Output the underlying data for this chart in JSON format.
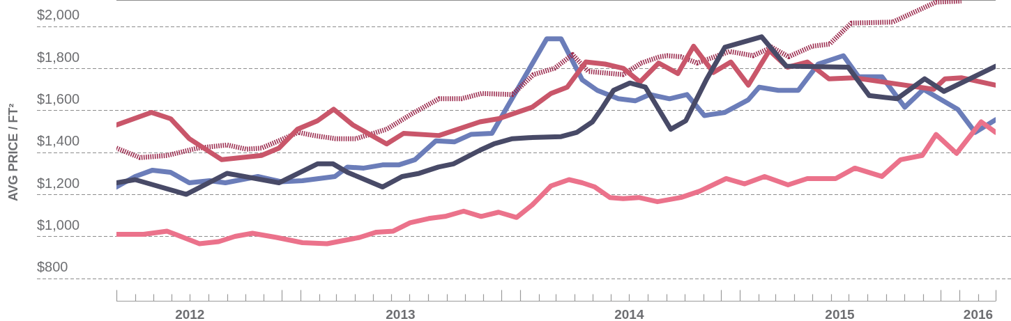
{
  "chart_data": {
    "type": "line",
    "ylabel": "AVG PRICE / FT²",
    "grid": "y",
    "legend": false,
    "marker": "none",
    "line_style": "solid",
    "xlim": [
      "2012-03-01",
      "2016-03-01"
    ],
    "ylim": [
      690,
      2125
    ],
    "yticks": [
      {
        "value": 800,
        "label": "$800"
      },
      {
        "value": 1000,
        "label": "$1,000"
      },
      {
        "value": 1200,
        "label": "$1,200"
      },
      {
        "value": 1400,
        "label": "$1,400"
      },
      {
        "value": 1600,
        "label": "$1,600"
      },
      {
        "value": 1800,
        "label": "$1,800"
      },
      {
        "value": 2000,
        "label": "$2,000"
      }
    ],
    "xticks": [
      {
        "value": "2012-03-01",
        "label": null
      },
      {
        "value": "2012-04-01",
        "label": null
      },
      {
        "value": "2012-05-01",
        "label": null
      },
      {
        "value": "2012-06-01",
        "label": null
      },
      {
        "value": "2012-07-01",
        "label": null
      },
      {
        "value": "2012-08-01",
        "label": null
      },
      {
        "value": "2012-09-01",
        "label": null
      },
      {
        "value": "2012-10-01",
        "label": null
      },
      {
        "value": "2012-11-01",
        "label": null
      },
      {
        "value": "2012-12-01",
        "label": null
      },
      {
        "value": "2013-01-01",
        "label": null
      },
      {
        "value": "2013-02-01",
        "label": null
      },
      {
        "value": "2013-03-01",
        "label": null
      },
      {
        "value": "2013-04-01",
        "label": null
      },
      {
        "value": "2013-05-01",
        "label": null
      },
      {
        "value": "2013-06-01",
        "label": null
      },
      {
        "value": "2013-07-01",
        "label": null
      },
      {
        "value": "2013-08-01",
        "label": null
      },
      {
        "value": "2013-09-01",
        "label": null
      },
      {
        "value": "2013-10-01",
        "label": null
      },
      {
        "value": "2013-11-01",
        "label": null
      },
      {
        "value": "2013-12-01",
        "label": null
      },
      {
        "value": "2014-01-01",
        "label": null
      },
      {
        "value": "2014-02-01",
        "label": null
      },
      {
        "value": "2014-03-01",
        "label": null
      },
      {
        "value": "2014-04-01",
        "label": null
      },
      {
        "value": "2014-05-01",
        "label": null
      },
      {
        "value": "2014-06-01",
        "label": null
      },
      {
        "value": "2014-07-01",
        "label": null
      },
      {
        "value": "2014-08-01",
        "label": null
      },
      {
        "value": "2014-09-01",
        "label": null
      },
      {
        "value": "2014-10-01",
        "label": null
      },
      {
        "value": "2014-11-01",
        "label": null
      },
      {
        "value": "2014-12-01",
        "label": null
      },
      {
        "value": "2015-01-01",
        "label": null
      },
      {
        "value": "2015-02-01",
        "label": null
      },
      {
        "value": "2015-03-01",
        "label": null
      },
      {
        "value": "2015-04-01",
        "label": null
      },
      {
        "value": "2015-05-01",
        "label": null
      },
      {
        "value": "2015-06-01",
        "label": null
      },
      {
        "value": "2015-07-01",
        "label": null
      },
      {
        "value": "2015-08-01",
        "label": null
      },
      {
        "value": "2015-09-01",
        "label": null
      },
      {
        "value": "2015-10-01",
        "label": null
      },
      {
        "value": "2015-11-01",
        "label": null
      },
      {
        "value": "2015-12-01",
        "label": null
      },
      {
        "value": "2016-01-01",
        "label": null
      },
      {
        "value": "2016-02-01",
        "label": null
      },
      {
        "value": "2016-03-01",
        "label": null
      },
      {
        "value": "2012-07-01",
        "label": "2012"
      },
      {
        "value": "2013-06-16",
        "label": "2013"
      },
      {
        "value": "2014-07-01",
        "label": "2014"
      },
      {
        "value": "2015-06-16",
        "label": "2015"
      },
      {
        "value": "2016-02-01",
        "label": "2016"
      }
    ],
    "series": [
      {
        "color": "#eb728b",
        "x": [
          "2012-03-01",
          "2012-04-15",
          "2012-05-24",
          "2012-07-17",
          "2012-08-18",
          "2012-09-14",
          "2012-10-13",
          "2012-11-22",
          "2013-01-04",
          "2013-02-14",
          "2013-04-09",
          "2013-05-07",
          "2013-06-04",
          "2013-07-02",
          "2013-08-02",
          "2013-08-29",
          "2013-09-29",
          "2013-10-28",
          "2013-11-26",
          "2013-12-26",
          "2014-01-21",
          "2014-02-21",
          "2014-03-23",
          "2014-04-14",
          "2014-05-05",
          "2014-05-30",
          "2014-06-21",
          "2014-07-17",
          "2014-08-17",
          "2014-09-25",
          "2014-10-26",
          "2014-12-09",
          "2015-01-09",
          "2015-02-11",
          "2015-03-22",
          "2015-04-23",
          "2015-06-09",
          "2015-07-11",
          "2015-08-25",
          "2015-09-25",
          "2015-10-31",
          "2015-11-23",
          "2015-12-27",
          "2016-02-06",
          "2016-03-01"
        ],
        "values": [
          1010,
          1010,
          1025,
          965,
          975,
          1000,
          1015,
          995,
          970,
          965,
          995,
          1020,
          1025,
          1065,
          1085,
          1095,
          1120,
          1095,
          1115,
          1090,
          1150,
          1240,
          1270,
          1255,
          1235,
          1185,
          1180,
          1185,
          1165,
          1185,
          1215,
          1275,
          1250,
          1285,
          1245,
          1275,
          1275,
          1325,
          1285,
          1365,
          1385,
          1485,
          1395,
          1545,
          1495
        ]
      },
      {
        "color": "#484a67",
        "x": [
          "2012-03-01",
          "2012-04-01",
          "2012-06-25",
          "2012-09-01",
          "2012-11-26",
          "2013-01-29",
          "2013-02-24",
          "2013-03-20",
          "2013-05-17",
          "2013-06-19",
          "2013-07-17",
          "2013-08-18",
          "2013-09-12",
          "2013-10-26",
          "2013-11-18",
          "2013-12-19",
          "2014-01-15",
          "2014-03-10",
          "2014-04-05",
          "2014-05-01",
          "2014-05-18",
          "2014-06-05",
          "2014-07-02",
          "2014-07-28",
          "2014-09-08",
          "2014-10-03",
          "2014-11-07",
          "2014-12-07",
          "2015-02-06",
          "2015-03-19",
          "2015-06-30",
          "2015-08-04",
          "2015-09-19",
          "2015-11-04",
          "2015-12-06",
          "2016-03-01"
        ],
        "values": [
          1255,
          1270,
          1200,
          1300,
          1255,
          1345,
          1345,
          1305,
          1235,
          1285,
          1300,
          1330,
          1345,
          1410,
          1440,
          1465,
          1470,
          1475,
          1495,
          1545,
          1615,
          1695,
          1730,
          1710,
          1510,
          1550,
          1750,
          1900,
          1950,
          1810,
          1805,
          1670,
          1655,
          1750,
          1690,
          1810
        ]
      },
      {
        "color": "#c9566a",
        "x": [
          "2012-03-01",
          "2012-04-28",
          "2012-05-30",
          "2012-06-30",
          "2012-08-23",
          "2012-10-28",
          "2012-11-26",
          "2012-12-27",
          "2013-01-29",
          "2013-02-25",
          "2013-03-29",
          "2013-05-24",
          "2013-06-21",
          "2013-08-19",
          "2013-10-26",
          "2013-11-26",
          "2014-01-21",
          "2014-02-21",
          "2014-03-20",
          "2014-04-20",
          "2014-05-22",
          "2014-06-21",
          "2014-07-19",
          "2014-08-19",
          "2014-09-20",
          "2014-10-16",
          "2014-11-18",
          "2014-12-17",
          "2015-01-15",
          "2015-02-19",
          "2015-03-21",
          "2015-04-23",
          "2015-05-29",
          "2015-07-09",
          "2015-11-19",
          "2015-12-08",
          "2016-01-04",
          "2016-03-01"
        ],
        "values": [
          1530,
          1590,
          1560,
          1465,
          1365,
          1385,
          1420,
          1510,
          1550,
          1605,
          1530,
          1440,
          1490,
          1480,
          1545,
          1560,
          1615,
          1680,
          1710,
          1830,
          1820,
          1800,
          1735,
          1825,
          1775,
          1905,
          1780,
          1830,
          1720,
          1885,
          1805,
          1830,
          1750,
          1755,
          1700,
          1750,
          1755,
          1720
        ]
      },
      {
        "color": "#9d2f51",
        "line_style": "dotted",
        "x": [
          "2012-03-01",
          "2012-04-09",
          "2012-05-24",
          "2012-07-14",
          "2012-09-01",
          "2012-10-03",
          "2012-10-28",
          "2012-11-26",
          "2012-12-28",
          "2013-01-23",
          "2013-02-28",
          "2013-04-03",
          "2013-05-24",
          "2013-07-06",
          "2013-08-19",
          "2013-09-25",
          "2013-10-29",
          "2013-12-19",
          "2014-01-23",
          "2014-02-27",
          "2014-03-29",
          "2014-04-24",
          "2014-06-21",
          "2014-07-21",
          "2014-08-21",
          "2014-09-02",
          "2014-09-25",
          "2014-10-22",
          "2014-12-15",
          "2015-01-23",
          "2015-02-23",
          "2015-03-23",
          "2015-05-01",
          "2015-05-30",
          "2015-07-05",
          "2015-09-12",
          "2015-11-23",
          "2016-01-04"
        ],
        "values": [
          1420,
          1375,
          1385,
          1420,
          1435,
          1415,
          1420,
          1455,
          1495,
          1480,
          1465,
          1465,
          1510,
          1585,
          1655,
          1655,
          1680,
          1675,
          1770,
          1800,
          1865,
          1785,
          1770,
          1825,
          1855,
          1860,
          1855,
          1825,
          1880,
          1860,
          1900,
          1855,
          1905,
          1915,
          2015,
          2020,
          2115,
          2120
        ]
      },
      {
        "color": "#6b7db9",
        "x": [
          "2012-03-01",
          "2012-04-01",
          "2012-04-30",
          "2012-05-30",
          "2012-06-30",
          "2012-08-03",
          "2012-08-29",
          "2012-10-22",
          "2012-11-30",
          "2013-01-04",
          "2013-02-27",
          "2013-03-20",
          "2013-04-16",
          "2013-05-17",
          "2013-06-13",
          "2013-07-10",
          "2013-08-14",
          "2013-09-14",
          "2013-10-11",
          "2013-11-15",
          "2014-02-14",
          "2014-03-10",
          "2014-04-14",
          "2014-05-09",
          "2014-06-13",
          "2014-07-11",
          "2014-08-04",
          "2014-09-06",
          "2014-10-05",
          "2014-11-03",
          "2014-12-07",
          "2015-01-15",
          "2015-02-02",
          "2015-03-06",
          "2015-04-08",
          "2015-05-11",
          "2015-06-22",
          "2015-07-17",
          "2015-08-25",
          "2015-10-02",
          "2015-11-02",
          "2015-12-29",
          "2016-01-27",
          "2016-03-01"
        ],
        "values": [
          1235,
          1285,
          1315,
          1305,
          1255,
          1265,
          1255,
          1285,
          1260,
          1265,
          1285,
          1330,
          1325,
          1340,
          1340,
          1365,
          1455,
          1450,
          1485,
          1490,
          1940,
          1940,
          1745,
          1695,
          1655,
          1645,
          1675,
          1655,
          1675,
          1575,
          1590,
          1650,
          1710,
          1695,
          1695,
          1820,
          1860,
          1760,
          1760,
          1615,
          1700,
          1605,
          1495,
          1555
        ]
      }
    ]
  }
}
